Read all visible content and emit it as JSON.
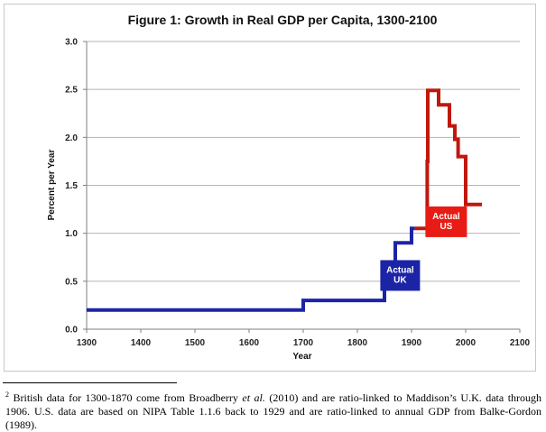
{
  "chart_data": {
    "type": "line",
    "title": "Figure 1: Growth in Real GDP per Capita, 1300-2100",
    "xlabel": "Year",
    "ylabel": "Percent per Year",
    "xlim": [
      1300,
      2100
    ],
    "ylim": [
      0.0,
      3.0
    ],
    "xticks": [
      "1300",
      "1400",
      "1500",
      "1600",
      "1700",
      "1800",
      "1900",
      "2000",
      "2100"
    ],
    "yticks": [
      "0.0",
      "0.5",
      "1.0",
      "1.5",
      "2.0",
      "2.5",
      "3.0"
    ],
    "grid": "horizontal",
    "series": [
      {
        "name": "Actual UK",
        "color": "#1c24a6",
        "points": [
          [
            1300,
            0.2
          ],
          [
            1700,
            0.2
          ],
          [
            1700,
            0.3
          ],
          [
            1850,
            0.3
          ],
          [
            1850,
            0.7
          ],
          [
            1870,
            0.7
          ],
          [
            1870,
            0.9
          ],
          [
            1900,
            0.9
          ],
          [
            1900,
            1.05
          ],
          [
            1906,
            1.05
          ]
        ]
      },
      {
        "name": "Actual US",
        "color": "#c0180e",
        "points": [
          [
            1906,
            1.05
          ],
          [
            1929,
            1.05
          ],
          [
            1929,
            1.75
          ],
          [
            1930,
            1.75
          ],
          [
            1930,
            2.49
          ],
          [
            1950,
            2.49
          ],
          [
            1950,
            2.34
          ],
          [
            1970,
            2.34
          ],
          [
            1970,
            2.12
          ],
          [
            1980,
            2.12
          ],
          [
            1980,
            1.98
          ],
          [
            1986,
            1.98
          ],
          [
            1986,
            1.8
          ],
          [
            2000,
            1.8
          ],
          [
            2000,
            1.3
          ],
          [
            2030,
            1.3
          ]
        ]
      }
    ],
    "annotations": [
      {
        "series": "Actual UK",
        "lines": [
          "Actual",
          "UK"
        ],
        "color": "#1c24a6"
      },
      {
        "series": "Actual US",
        "lines": [
          "Actual",
          "US"
        ],
        "color": "#e81c14"
      }
    ]
  },
  "footnote": {
    "marker": "2",
    "text_1": "British data for 1300-1870 come from Broadberry ",
    "text_italic": "et al.",
    "text_2": " (2010) and are ratio-linked to Maddison’s U.K. data through 1906.  U.S. data are based on NIPA Table 1.1.6 back to 1929 and are ratio-linked to annual GDP from Balke-Gordon (1989)."
  }
}
